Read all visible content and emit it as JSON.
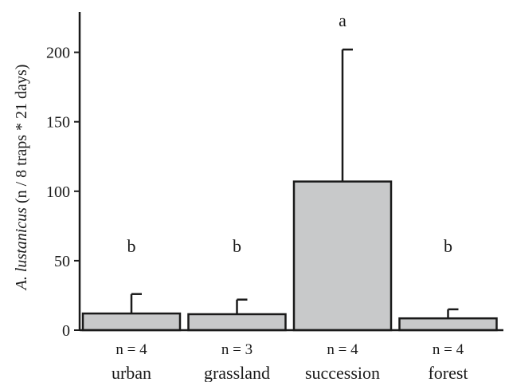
{
  "chart_data": {
    "type": "bar",
    "title": "",
    "xlabel": "",
    "ylabel": {
      "italic": "A. lustanicus",
      "rest": " (n / 8 traps * 21 days)"
    },
    "ylim": [
      0,
      230
    ],
    "yticks": [
      0,
      50,
      100,
      150,
      200
    ],
    "grid": false,
    "categories": [
      "urban",
      "grassland",
      "succession",
      "forest"
    ],
    "sample_sizes": [
      "n = 4",
      "n = 3",
      "n = 4",
      "n = 4"
    ],
    "values": [
      12,
      11.5,
      107,
      8.5
    ],
    "error_upper": [
      26,
      22,
      202,
      15
    ],
    "significance_letters": [
      "b",
      "b",
      "a",
      "b"
    ],
    "colors": {
      "bar_fill": "#c8c9ca",
      "bar_stroke": "#1a1a1a",
      "axis": "#1a1a1a"
    }
  }
}
